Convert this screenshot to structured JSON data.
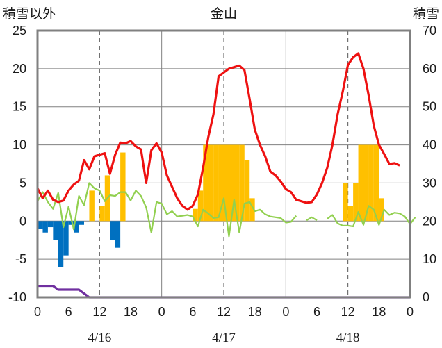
{
  "chart_data": {
    "type": "combo",
    "title": "金山",
    "left_axis_label": "積雪以外",
    "right_axis_label": "積雪",
    "y_left": {
      "min": -10,
      "max": 25,
      "ticks": [
        "25",
        "20",
        "15",
        "10",
        "5",
        "0",
        "-5",
        "-10"
      ]
    },
    "y_right": {
      "min": 0,
      "max": 70,
      "ticks": [
        "70",
        "60",
        "50",
        "40",
        "30",
        "20",
        "10",
        "0"
      ]
    },
    "x": {
      "min": 0,
      "max": 72,
      "unit": "hours from 4/16 00:00"
    },
    "x_tick_labels": [
      "0",
      "6",
      "12",
      "18",
      "0",
      "6",
      "12",
      "18",
      "0",
      "6",
      "12",
      "18",
      "0"
    ],
    "date_labels": [
      "4/16",
      "4/17",
      "4/18"
    ],
    "colors": {
      "temperature": "#ee1111",
      "wind": "#92d050",
      "snowfall": "#ffc000",
      "precip": "#0070c0",
      "snow_depth": "#7030a0",
      "axes": "#808080",
      "grid": "#808080"
    },
    "series": [
      {
        "name": "temperature",
        "axis": "left",
        "type": "line",
        "values": [
          4.3,
          3.0,
          4.0,
          2.8,
          2.5,
          2.7,
          4.0,
          4.8,
          5.3,
          8.0,
          6.8,
          8.5,
          8.7,
          8.9,
          6.2,
          8.7,
          10.3,
          10.2,
          10.5,
          9.8,
          9.4,
          5.0,
          9.3,
          10.2,
          9.0,
          6.0,
          4.5,
          3.0,
          2.0,
          1.5,
          2.0,
          3.5,
          7.0,
          11.0,
          14.0,
          19.0,
          19.5,
          20.0,
          20.2,
          20.4,
          19.8,
          16.0,
          12.0,
          10.0,
          8.5,
          6.5,
          6.0,
          5.2,
          4.2,
          3.8,
          2.8,
          2.6,
          2.4,
          2.5,
          3.5,
          5.0,
          7.0,
          10.0,
          14.0,
          17.0,
          20.5,
          21.5,
          22.0,
          20.0,
          16.5,
          12.5,
          10.0,
          8.8,
          7.5,
          7.6,
          7.3
        ]
      },
      {
        "name": "wind",
        "axis": "left",
        "type": "line",
        "values": [
          2.6,
          3.8,
          2.5,
          1.6,
          3.7,
          -0.8,
          1.9,
          -1.1,
          3.3,
          2.1,
          5.0,
          4.3,
          4.0,
          2.6,
          3.4,
          3.3,
          3.8,
          3.8,
          2.7,
          4.0,
          3.3,
          1.8,
          -1.5,
          2.5,
          2.3,
          0.9,
          1.3,
          0.6,
          0.7,
          0.8,
          0.6,
          -0.7,
          1.5,
          1.0,
          0.4,
          0.5,
          3.0,
          -2.0,
          2.8,
          -1.5,
          2.3,
          2.5,
          1.3,
          1.5,
          0.9,
          0.6,
          0.5,
          0.4,
          -0.2,
          -0.1,
          0.7,
          null,
          0.1,
          0.5,
          0.1,
          null,
          0.3,
          0.8,
          -0.3,
          -0.6,
          -0.6,
          -0.7,
          1.2,
          -0.5,
          2.0,
          1.5,
          -0.5,
          1.5,
          0.8,
          1.1,
          1.0,
          0.6,
          -0.4,
          0.5
        ]
      },
      {
        "name": "snowfall",
        "axis": "left",
        "type": "bar",
        "bars": [
          [
            10,
            4
          ],
          [
            12,
            2
          ],
          [
            13,
            6
          ],
          [
            16,
            9
          ],
          [
            30,
            1.6
          ],
          [
            31,
            4
          ],
          [
            32,
            10
          ],
          [
            33,
            10
          ],
          [
            34,
            10
          ],
          [
            35,
            10
          ],
          [
            36,
            10
          ],
          [
            37,
            10
          ],
          [
            38,
            10
          ],
          [
            39,
            10
          ],
          [
            40,
            8
          ],
          [
            41,
            3
          ],
          [
            59,
            5
          ],
          [
            60,
            2
          ],
          [
            61,
            5
          ],
          [
            62,
            10
          ],
          [
            63,
            10
          ],
          [
            64,
            10
          ],
          [
            65,
            10
          ],
          [
            66,
            3
          ]
        ]
      },
      {
        "name": "precipitation",
        "axis": "left",
        "type": "bar",
        "bars": [
          [
            0,
            -1
          ],
          [
            1,
            -1.5
          ],
          [
            2,
            -0.8
          ],
          [
            3,
            -2.5
          ],
          [
            4,
            -6
          ],
          [
            5,
            -4.5
          ],
          [
            6,
            -0.5
          ],
          [
            7,
            -1.5
          ],
          [
            8,
            -0.5
          ],
          [
            14,
            -2.5
          ],
          [
            15,
            -3.5
          ]
        ]
      },
      {
        "name": "snow_depth",
        "axis": "right",
        "type": "line",
        "values": [
          3,
          3,
          3,
          3,
          2,
          2,
          2,
          2,
          2,
          1,
          0,
          0,
          0,
          0,
          0,
          0,
          0,
          0,
          0,
          0,
          0,
          0,
          0,
          0,
          0,
          0,
          0,
          0,
          0,
          0,
          0,
          0,
          0,
          0,
          0,
          0,
          0,
          0,
          0,
          0,
          0,
          0,
          0,
          0,
          0,
          0,
          0,
          0,
          0,
          0,
          0,
          0,
          0,
          0,
          0,
          0,
          0,
          0,
          0,
          0,
          0,
          0,
          0,
          0,
          0,
          0,
          0,
          0,
          0,
          0,
          0,
          0,
          0
        ]
      }
    ]
  }
}
